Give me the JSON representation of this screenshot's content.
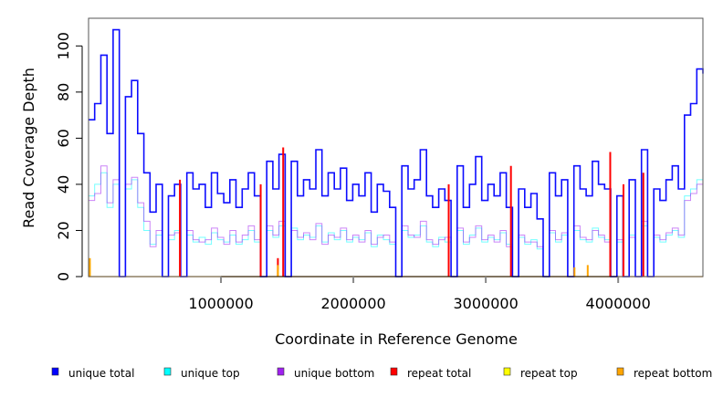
{
  "chart_data": {
    "type": "line",
    "title": "",
    "xlabel": "Coordinate in Reference Genome",
    "ylabel": "Read Coverage Depth",
    "xlim": [
      0,
      4640000
    ],
    "ylim": [
      0,
      112
    ],
    "x_ticks": [
      1000000,
      2000000,
      3000000,
      4000000
    ],
    "x_tick_labels": [
      "1000000",
      "2000000",
      "3000000",
      "4000000"
    ],
    "y_ticks": [
      0,
      20,
      40,
      60,
      80,
      100
    ],
    "y_tick_labels": [
      "0",
      "20",
      "40",
      "60",
      "80",
      "100"
    ],
    "grid": false,
    "legend_placement": "bottom",
    "x_start": 0,
    "x_step": 46400,
    "series": [
      {
        "name": "unique top",
        "color": "#00ffff",
        "values": [
          35,
          40,
          45,
          30,
          40,
          0,
          38,
          42,
          30,
          20,
          14,
          18,
          0,
          16,
          20,
          0,
          18,
          15,
          17,
          14,
          19,
          16,
          15,
          18,
          14,
          16,
          20,
          15,
          0,
          20,
          17,
          22,
          0,
          21,
          16,
          18,
          17,
          22,
          15,
          19,
          16,
          20,
          15,
          17,
          16,
          19,
          13,
          18,
          16,
          14,
          0,
          20,
          17,
          18,
          22,
          15,
          13,
          17,
          15,
          0,
          20,
          14,
          18,
          21,
          15,
          17,
          16,
          19,
          14,
          0,
          17,
          14,
          16,
          12,
          0,
          19,
          15,
          18,
          0,
          20,
          16,
          15,
          21,
          17,
          16,
          0,
          15,
          0,
          18,
          0,
          22,
          0,
          17,
          15,
          18,
          20,
          17,
          35,
          38,
          42,
          40
        ]
      },
      {
        "name": "unique bottom",
        "color": "#a020f0",
        "values": [
          33,
          36,
          48,
          32,
          42,
          0,
          40,
          43,
          32,
          24,
          13,
          20,
          0,
          18,
          19,
          0,
          20,
          16,
          15,
          16,
          21,
          17,
          14,
          20,
          15,
          18,
          22,
          16,
          0,
          22,
          18,
          24,
          0,
          20,
          17,
          19,
          16,
          23,
          14,
          18,
          17,
          21,
          16,
          18,
          15,
          20,
          14,
          17,
          18,
          15,
          0,
          22,
          18,
          17,
          24,
          16,
          14,
          16,
          17,
          0,
          21,
          15,
          17,
          22,
          16,
          18,
          15,
          20,
          13,
          0,
          18,
          15,
          15,
          13,
          0,
          20,
          16,
          19,
          0,
          22,
          17,
          16,
          20,
          18,
          15,
          0,
          16,
          0,
          17,
          0,
          24,
          0,
          18,
          16,
          19,
          21,
          18,
          33,
          36,
          40,
          42
        ]
      },
      {
        "name": "unique total",
        "color": "#0000ff",
        "values": [
          68,
          75,
          96,
          62,
          107,
          0,
          78,
          85,
          62,
          45,
          28,
          40,
          0,
          35,
          40,
          0,
          45,
          38,
          40,
          30,
          45,
          36,
          32,
          42,
          30,
          38,
          45,
          35,
          0,
          50,
          38,
          53,
          0,
          50,
          35,
          42,
          38,
          55,
          35,
          45,
          38,
          47,
          33,
          40,
          35,
          45,
          28,
          40,
          37,
          30,
          0,
          48,
          38,
          42,
          55,
          35,
          30,
          38,
          33,
          0,
          48,
          30,
          40,
          52,
          33,
          40,
          35,
          45,
          30,
          0,
          38,
          30,
          36,
          25,
          0,
          45,
          35,
          42,
          0,
          48,
          38,
          35,
          50,
          40,
          38,
          0,
          35,
          0,
          42,
          0,
          55,
          0,
          38,
          33,
          42,
          48,
          38,
          70,
          75,
          90,
          88
        ]
      }
    ],
    "spikes": [
      {
        "name": "repeat total",
        "color": "#ff0000",
        "points": [
          [
            690000,
            42
          ],
          [
            1300000,
            40
          ],
          [
            1430000,
            8
          ],
          [
            1470000,
            56
          ],
          [
            2720000,
            40
          ],
          [
            3190000,
            48
          ],
          [
            3940000,
            54
          ],
          [
            4040000,
            40
          ],
          [
            4190000,
            45
          ]
        ]
      },
      {
        "name": "repeat top",
        "color": "#ffff00",
        "points": [
          [
            10000,
            6
          ],
          [
            1430000,
            3
          ]
        ]
      },
      {
        "name": "repeat bottom",
        "color": "#ffa500",
        "points": [
          [
            10000,
            8
          ],
          [
            1430000,
            5
          ],
          [
            3670000,
            4
          ],
          [
            3770000,
            5
          ]
        ]
      }
    ],
    "legend": [
      {
        "label": "unique total",
        "color": "#0000ff"
      },
      {
        "label": "unique top",
        "color": "#00ffff"
      },
      {
        "label": "unique bottom",
        "color": "#a020f0"
      },
      {
        "label": "repeat total",
        "color": "#ff0000"
      },
      {
        "label": "repeat top",
        "color": "#ffff00"
      },
      {
        "label": "repeat bottom",
        "color": "#ffa500"
      }
    ]
  }
}
